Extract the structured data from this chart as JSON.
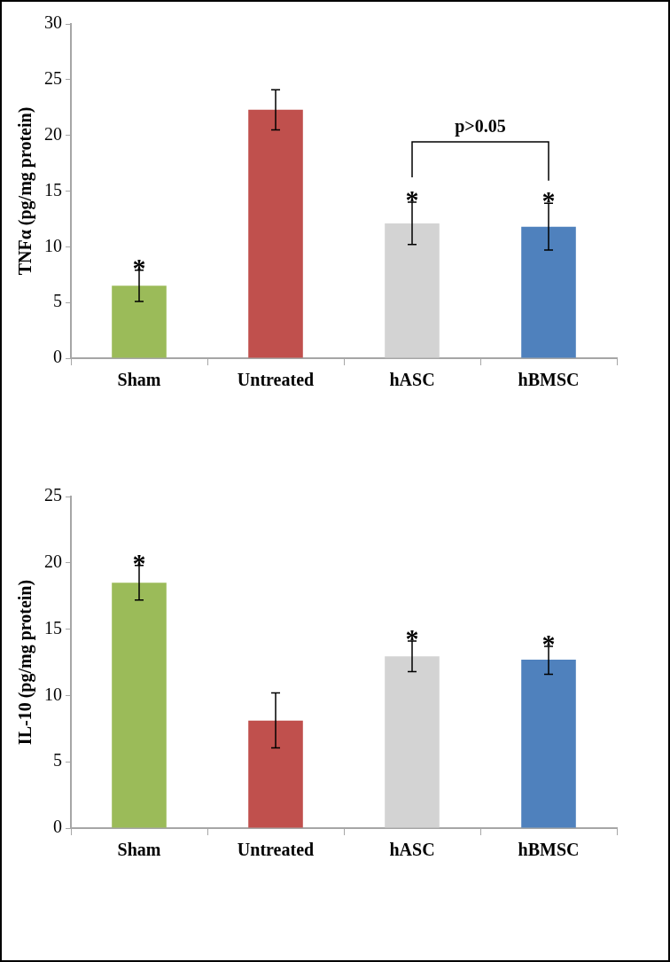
{
  "chart_data": [
    {
      "type": "bar",
      "ylabel": "TNFα (pg/mg protein)",
      "categories": [
        "Sham",
        "Untreated",
        "hASC",
        "hBMSC"
      ],
      "values": [
        6.5,
        22.3,
        12.1,
        11.8
      ],
      "colors": [
        "#9bbb59",
        "#c0504d",
        "#d3d3d3",
        "#4f81bd"
      ],
      "errors": [
        [
          5.1,
          7.9
        ],
        [
          20.5,
          24.1
        ],
        [
          10.2,
          14.0
        ],
        [
          9.7,
          13.9
        ]
      ],
      "ylim": [
        0,
        30
      ],
      "yticks": [
        0,
        5,
        10,
        15,
        20,
        25,
        30
      ],
      "annotations": [
        {
          "text": "*",
          "x": "Sham",
          "y": 7.9
        },
        {
          "text": "*",
          "x": "hASC",
          "y": 14.0
        },
        {
          "text": "*",
          "x": "hBMSC",
          "y": 13.9
        },
        "p>0.05"
      ]
    },
    {
      "type": "bar",
      "ylabel": "IL-10 (pg/mg protein)",
      "categories": [
        "Sham",
        "Untreated",
        "hASC",
        "hBMSC"
      ],
      "values": [
        18.5,
        8.1,
        12.95,
        12.7
      ],
      "colors": [
        "#9bbb59",
        "#c0504d",
        "#d3d3d3",
        "#4f81bd"
      ],
      "errors": [
        [
          17.2,
          19.8
        ],
        [
          6.05,
          10.2
        ],
        [
          11.8,
          14.1
        ],
        [
          11.6,
          13.7
        ]
      ],
      "ylim": [
        0,
        25
      ],
      "yticks": [
        0,
        5,
        10,
        15,
        20,
        25
      ],
      "annotations": [
        {
          "text": "*",
          "x": "Sham",
          "y": 19.8
        },
        {
          "text": "*",
          "x": "hASC",
          "y": 14.1
        },
        {
          "text": "*",
          "x": "hBMSC",
          "y": 13.7
        }
      ]
    }
  ]
}
